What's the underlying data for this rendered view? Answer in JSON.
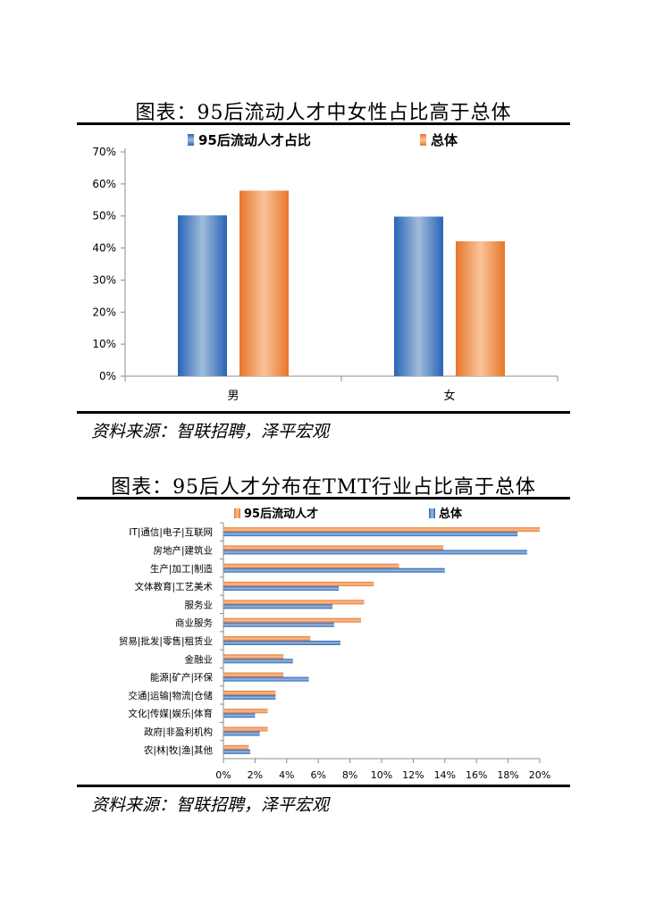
{
  "figure1": {
    "title": "图表：95后流动人才中女性占比高于总体",
    "source": "资料来源：智联招聘，泽平宏观",
    "chart_data": {
      "type": "bar",
      "categories": [
        "男",
        "女"
      ],
      "series": [
        {
          "name": "95后流动人才占比",
          "values": [
            50.2,
            49.8
          ]
        },
        {
          "name": "总体",
          "values": [
            57.9,
            42.1
          ]
        }
      ],
      "y_ticks": [
        "0%",
        "10%",
        "20%",
        "30%",
        "40%",
        "50%",
        "60%",
        "70%"
      ],
      "ylim": [
        0,
        70
      ],
      "legend": "top",
      "colors": {
        "95后流动人才占比": "#4f81bd",
        "总体": "#f79646"
      }
    }
  },
  "figure2": {
    "title": "图表：95后人才分布在TMT行业占比高于总体",
    "source": "资料来源：智联招聘，泽平宏观",
    "chart_data": {
      "type": "bar",
      "orientation": "horizontal",
      "categories": [
        "IT|通信|电子|互联网",
        "房地产|建筑业",
        "生产|加工|制造",
        "文体教育|工艺美术",
        "服务业",
        "商业服务",
        "贸易|批发|零售|租赁业",
        "金融业",
        "能源|矿产|环保",
        "交通|运输|物流|仓储",
        "文化|传媒|娱乐|体育",
        "政府|非盈利机构",
        "农|林|牧|渔|其他"
      ],
      "series": [
        {
          "name": "95后流动人才",
          "values": [
            20.0,
            13.9,
            11.1,
            9.5,
            8.9,
            8.7,
            5.5,
            3.8,
            3.8,
            3.3,
            2.8,
            2.8,
            1.6
          ]
        },
        {
          "name": "总体",
          "values": [
            18.6,
            19.2,
            14.0,
            7.3,
            6.9,
            7.0,
            7.4,
            4.4,
            5.4,
            3.3,
            2.0,
            2.3,
            1.7
          ]
        }
      ],
      "x_ticks": [
        "0%",
        "2%",
        "4%",
        "6%",
        "8%",
        "10%",
        "12%",
        "14%",
        "16%",
        "18%",
        "20%"
      ],
      "xlim": [
        0,
        20
      ],
      "legend": "top",
      "colors": {
        "95后流动人才": "#f79646",
        "总体": "#4f81bd"
      }
    }
  }
}
